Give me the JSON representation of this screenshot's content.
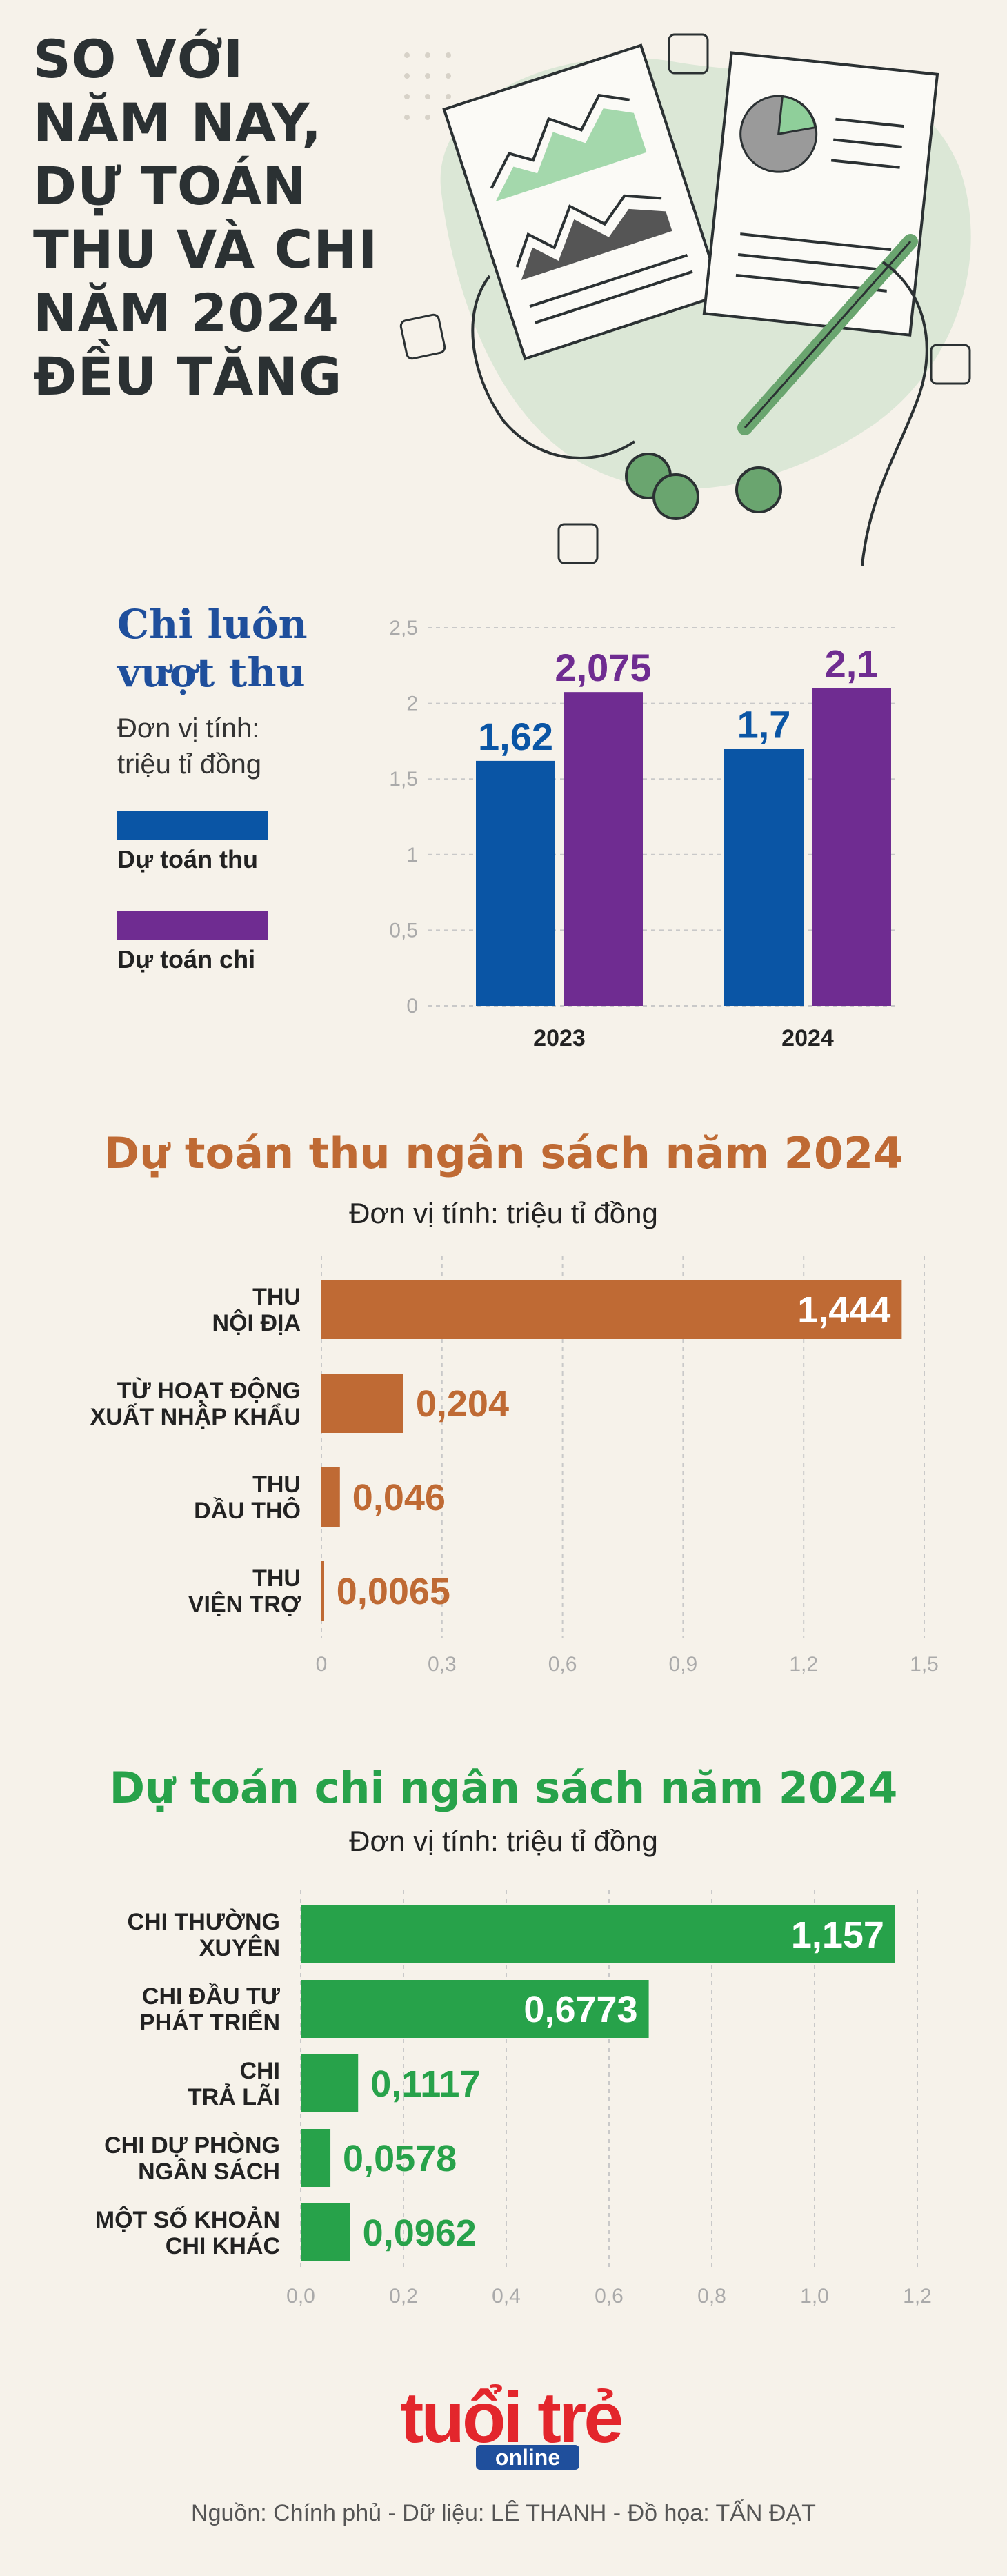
{
  "header": {
    "title_lines": [
      "SO VỚI",
      "NĂM NAY,",
      "DỰ TOÁN",
      "THU VÀ CHI",
      "NĂM 2024",
      "ĐỀU TĂNG"
    ]
  },
  "colors": {
    "thu": "#0a55a5",
    "chi": "#6f2c91",
    "revenue": "#bf6a34",
    "expense": "#27a24a",
    "grid": "#c9c9c9",
    "axis_text": "#aaaaaa",
    "logo_red": "#e3262c",
    "logo_blue": "#1f4f9c"
  },
  "compare": {
    "heading_lines": [
      "Chi luôn",
      "vượt thu"
    ],
    "unit_lines": [
      "Đơn vị tính:",
      "triệu tỉ đồng"
    ],
    "legend": [
      {
        "label": "Dự toán thu",
        "color": "#0a55a5"
      },
      {
        "label": "Dự toán chi",
        "color": "#6f2c91"
      }
    ]
  },
  "revenue_section": {
    "title": "Dự toán thu ngân sách năm 2024",
    "unit": "Đơn vị tính: triệu tỉ đồng"
  },
  "expense_section": {
    "title": "Dự toán chi ngân sách năm 2024",
    "unit": "Đơn vị tính: triệu tỉ đồng"
  },
  "chart_data": [
    {
      "type": "bar",
      "orientation": "vertical",
      "categories": [
        "2023",
        "2024"
      ],
      "series": [
        {
          "name": "Dự toán thu",
          "values": [
            1.62,
            1.7
          ],
          "labels": [
            "1,62",
            "1,7"
          ]
        },
        {
          "name": "Dự toán chi",
          "values": [
            2.075,
            2.1
          ],
          "labels": [
            "2,075",
            "2,1"
          ]
        }
      ],
      "ylim": [
        0,
        2.5
      ],
      "yticks": [
        "0",
        "0,5",
        "1",
        "1,5",
        "2",
        "2,5"
      ],
      "grid": true,
      "legend": "left"
    },
    {
      "type": "bar",
      "orientation": "horizontal",
      "categories": [
        [
          "THU",
          "NỘI ĐỊA"
        ],
        [
          "TỪ HOẠT ĐỘNG",
          "XUẤT NHẬP KHẨU"
        ],
        [
          "THU",
          "DẦU THÔ"
        ],
        [
          "THU",
          "VIỆN TRỢ"
        ]
      ],
      "values": [
        1.444,
        0.204,
        0.046,
        0.0065
      ],
      "labels": [
        "1,444",
        "0,204",
        "0,046",
        "0,0065"
      ],
      "xlim": [
        0,
        1.5
      ],
      "xticks": [
        "0",
        "0,3",
        "0,6",
        "0,9",
        "1,2",
        "1,5"
      ],
      "grid": true
    },
    {
      "type": "bar",
      "orientation": "horizontal",
      "categories": [
        [
          "CHI THƯỜNG",
          "XUYÊN"
        ],
        [
          "CHI ĐẦU TƯ",
          "PHÁT TRIỂN"
        ],
        [
          "CHI",
          "TRẢ LÃI"
        ],
        [
          "CHI DỰ PHÒNG",
          "NGÂN SÁCH"
        ],
        [
          "MỘT SỐ KHOẢN",
          "CHI KHÁC"
        ]
      ],
      "values": [
        1.157,
        0.6773,
        0.1117,
        0.0578,
        0.0962
      ],
      "labels": [
        "1,157",
        "0,6773",
        "0,1117",
        "0,0578",
        "0,0962"
      ],
      "xlim": [
        0,
        1.2
      ],
      "xticks": [
        "0,0",
        "0,2",
        "0,4",
        "0,6",
        "0,8",
        "1,0",
        "1,2"
      ],
      "grid": true
    }
  ],
  "logo": {
    "main": "tuổi trẻ",
    "sub": "online"
  },
  "footer": {
    "source": "Nguồn: Chính phủ - Dữ liệu: LÊ THANH - Đồ họa: TẤN ĐẠT"
  }
}
